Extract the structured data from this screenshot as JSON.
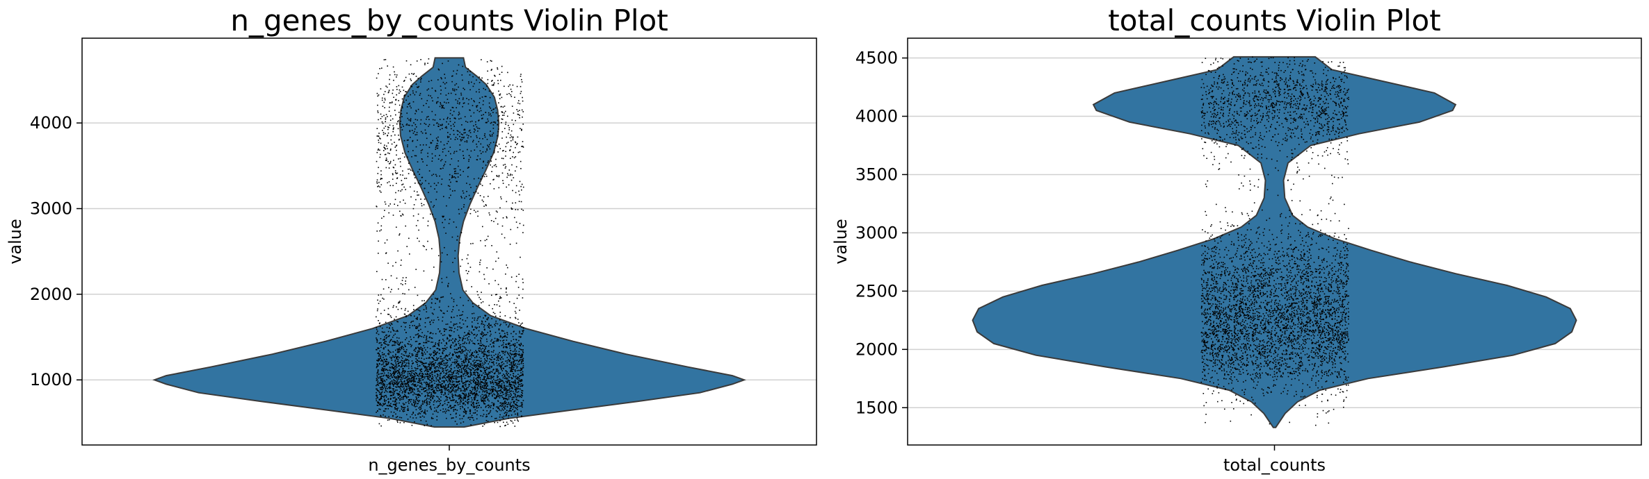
{
  "chart_data": [
    {
      "type": "violin",
      "title": "n_genes_by_counts Violin Plot",
      "xlabel": "",
      "ylabel": "value",
      "categories": [
        "n_genes_by_counts"
      ],
      "ylim": [
        240,
        4990
      ],
      "yticks": [
        1000,
        2000,
        3000,
        4000
      ],
      "grid": "horizontal",
      "color": "#3274a1",
      "y_range": [
        450,
        4760
      ],
      "density": [
        [
          450,
          0.05
        ],
        [
          550,
          0.2
        ],
        [
          650,
          0.42
        ],
        [
          750,
          0.64
        ],
        [
          850,
          0.85
        ],
        [
          950,
          0.96
        ],
        [
          1000,
          1.0
        ],
        [
          1050,
          0.96
        ],
        [
          1150,
          0.81
        ],
        [
          1300,
          0.6
        ],
        [
          1450,
          0.42
        ],
        [
          1600,
          0.26
        ],
        [
          1750,
          0.14
        ],
        [
          1900,
          0.08
        ],
        [
          2050,
          0.046
        ],
        [
          2250,
          0.033
        ],
        [
          2450,
          0.03
        ],
        [
          2650,
          0.035
        ],
        [
          2850,
          0.048
        ],
        [
          3050,
          0.07
        ],
        [
          3250,
          0.096
        ],
        [
          3450,
          0.124
        ],
        [
          3650,
          0.15
        ],
        [
          3850,
          0.165
        ],
        [
          4000,
          0.168
        ],
        [
          4150,
          0.164
        ],
        [
          4300,
          0.153
        ],
        [
          4450,
          0.125
        ],
        [
          4550,
          0.092
        ],
        [
          4650,
          0.055
        ],
        [
          4760,
          0.048
        ]
      ]
    },
    {
      "type": "violin",
      "title": "total_counts Violin Plot",
      "xlabel": "",
      "ylabel": "value",
      "categories": [
        "total_counts"
      ],
      "ylim": [
        1180,
        4670
      ],
      "yticks": [
        1500,
        2000,
        2500,
        3000,
        3500,
        4000,
        4500
      ],
      "grid": "horizontal",
      "color": "#3274a1",
      "y_range": [
        1330,
        4510
      ],
      "density": [
        [
          1330,
          0.004
        ],
        [
          1450,
          0.035
        ],
        [
          1550,
          0.076
        ],
        [
          1650,
          0.15
        ],
        [
          1750,
          0.31
        ],
        [
          1850,
          0.56
        ],
        [
          1950,
          0.79
        ],
        [
          2050,
          0.93
        ],
        [
          2150,
          0.985
        ],
        [
          2250,
          1.0
        ],
        [
          2350,
          0.98
        ],
        [
          2450,
          0.9
        ],
        [
          2550,
          0.77
        ],
        [
          2650,
          0.6
        ],
        [
          2750,
          0.45
        ],
        [
          2850,
          0.32
        ],
        [
          2950,
          0.2
        ],
        [
          3050,
          0.11
        ],
        [
          3150,
          0.06
        ],
        [
          3300,
          0.034
        ],
        [
          3450,
          0.03
        ],
        [
          3600,
          0.045
        ],
        [
          3750,
          0.12
        ],
        [
          3850,
          0.28
        ],
        [
          3950,
          0.48
        ],
        [
          4050,
          0.59
        ],
        [
          4100,
          0.6
        ],
        [
          4200,
          0.53
        ],
        [
          4300,
          0.36
        ],
        [
          4400,
          0.19
        ],
        [
          4510,
          0.135
        ]
      ]
    }
  ]
}
